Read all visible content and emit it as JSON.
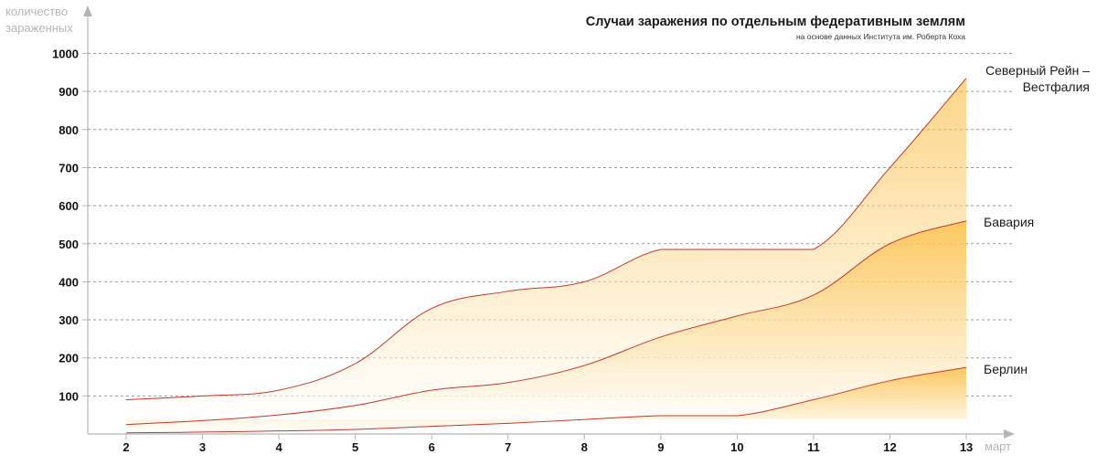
{
  "chart_data": {
    "type": "area",
    "title": "Случаи заражения по отдельным федеративным землям",
    "subtitle": "на основе данных Института им. Роберта Коха",
    "ylabel": "количество\nзараженных",
    "xlabel": "март",
    "x": [
      2,
      3,
      4,
      5,
      6,
      7,
      8,
      9,
      10,
      11,
      12,
      13
    ],
    "ylim": [
      0,
      1000
    ],
    "yticks": [
      100,
      200,
      300,
      400,
      500,
      600,
      700,
      800,
      900,
      1000
    ],
    "grid": true,
    "series": [
      {
        "name": "Северный Рейн – Вестфалия",
        "label_lines": [
          "Северный Рейн –",
          "Вестфалия"
        ],
        "values": [
          90,
          100,
          115,
          185,
          330,
          375,
          400,
          485,
          485,
          485,
          700,
          935
        ]
      },
      {
        "name": "Бавария",
        "label_lines": [
          "Бавария"
        ],
        "values": [
          25,
          35,
          50,
          75,
          115,
          135,
          180,
          255,
          310,
          365,
          500,
          560
        ]
      },
      {
        "name": "Берлин",
        "label_lines": [
          "Берлин"
        ],
        "values": [
          3,
          5,
          8,
          12,
          20,
          28,
          38,
          48,
          48,
          90,
          140,
          175
        ]
      }
    ],
    "colors": {
      "line": "#c0392b",
      "fill_top": "#fbb324",
      "fill_bottom": "#ffffff",
      "grid": "#9a9a9a",
      "axis": "#b5b5b5"
    }
  }
}
